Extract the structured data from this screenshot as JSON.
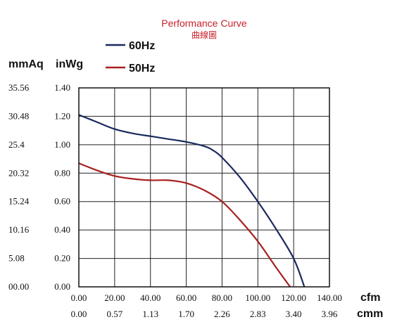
{
  "chart_data": {
    "type": "line",
    "title": "Performance Curve",
    "subtitle": "曲線圖",
    "x_units": [
      "cfm",
      "cmm"
    ],
    "y_units": [
      "mmAq",
      "inWg"
    ],
    "x_ticks_cfm": [
      "0.00",
      "20.00",
      "40.00",
      "60.00",
      "80.00",
      "100.00",
      "120.00",
      "140.00"
    ],
    "x_ticks_cmm": [
      "0.00",
      "0.57",
      "1.13",
      "1.70",
      "2.26",
      "2.83",
      "3.40",
      "3.96"
    ],
    "y_ticks_inwg": [
      "0.00",
      "0.20",
      "0.40",
      "0.60",
      "0.80",
      "1.00",
      "1.20",
      "1.40"
    ],
    "y_ticks_mmaq": [
      "00.00",
      "5.08",
      "10.16",
      "15.24",
      "20.32",
      "25.4",
      "30.48",
      "35.56"
    ],
    "xlim": [
      0,
      140
    ],
    "ylim": [
      0,
      1.4
    ],
    "grid": true,
    "legend_position": "top-left",
    "series": [
      {
        "name": "60Hz",
        "color": "#1a2a5e",
        "x": [
          0,
          10,
          20,
          30,
          40,
          50,
          60,
          70,
          75,
          80,
          90,
          100,
          110,
          120,
          126
        ],
        "y": [
          1.21,
          1.16,
          1.11,
          1.08,
          1.06,
          1.04,
          1.02,
          0.99,
          0.96,
          0.91,
          0.77,
          0.6,
          0.41,
          0.2,
          0.0
        ]
      },
      {
        "name": "50Hz",
        "color": "#a82020",
        "x": [
          0,
          10,
          20,
          30,
          40,
          50,
          60,
          70,
          80,
          90,
          100,
          110,
          118
        ],
        "y": [
          0.87,
          0.82,
          0.78,
          0.76,
          0.75,
          0.75,
          0.73,
          0.68,
          0.6,
          0.47,
          0.32,
          0.14,
          0.0
        ]
      }
    ]
  }
}
